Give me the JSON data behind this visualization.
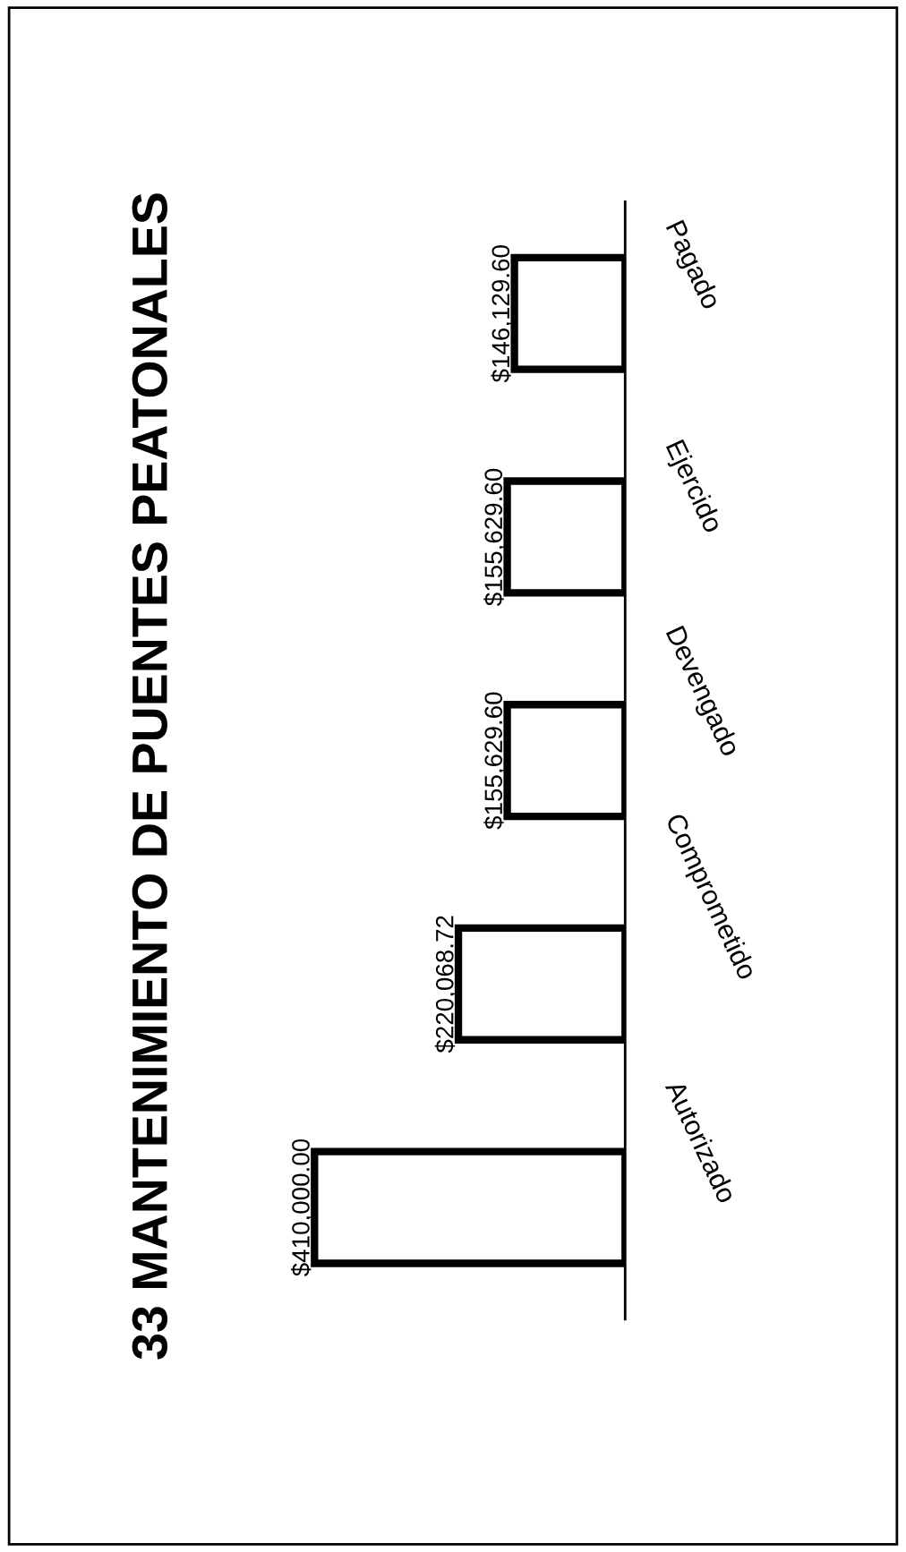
{
  "chart_data": {
    "type": "bar",
    "orientation": "horizontal",
    "title": "33 MANTENIMIENTO DE PUENTES PEATONALES",
    "categories": [
      "Pagado",
      "Ejercido",
      "Devengado",
      "Comprometido",
      "Autorizado"
    ],
    "values": [
      146129.6,
      155629.6,
      155629.6,
      220068.72,
      410000.0
    ],
    "value_labels": [
      "$146,129.60",
      "$155,629.60",
      "$155,629.60",
      "$220,068.72",
      "$410,000.00"
    ],
    "color": "#ffffff",
    "grid": false,
    "legend": false
  }
}
